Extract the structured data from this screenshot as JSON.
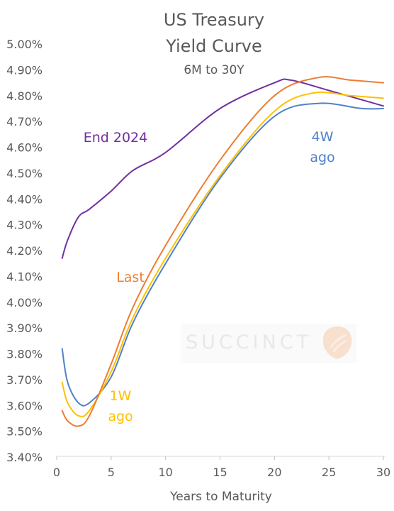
{
  "chart_data": {
    "type": "line",
    "title": "US Treasury",
    "title_line2": "Yield Curve",
    "subtitle": "6M to 30Y",
    "xlabel": "Years to Maturity",
    "ylabel": "",
    "xlim": [
      0,
      30
    ],
    "ylim": [
      3.4,
      5.0
    ],
    "x_ticks": [
      0,
      5,
      10,
      15,
      20,
      25,
      30
    ],
    "y_ticks": [
      3.4,
      3.5,
      3.6,
      3.7,
      3.8,
      3.9,
      4.0,
      4.1,
      4.2,
      4.3,
      4.4,
      4.5,
      4.6,
      4.7,
      4.8,
      4.9,
      5.0
    ],
    "y_tick_labels": [
      "3.40%",
      "3.50%",
      "3.60%",
      "3.70%",
      "3.80%",
      "3.90%",
      "4.00%",
      "4.10%",
      "4.20%",
      "4.30%",
      "4.40%",
      "4.50%",
      "4.60%",
      "4.70%",
      "4.80%",
      "4.90%",
      "5.00%"
    ],
    "grid": false,
    "legend": "inline labels",
    "watermark": "SUCCINCT",
    "series": [
      {
        "name": "End 2024",
        "color": "#7030a0",
        "label_lines": [
          "End 2024"
        ],
        "points": [
          [
            0.5,
            4.17
          ],
          [
            1,
            4.24
          ],
          [
            2,
            4.33
          ],
          [
            3,
            4.36
          ],
          [
            5,
            4.43
          ],
          [
            7,
            4.51
          ],
          [
            10,
            4.58
          ],
          [
            15,
            4.75
          ],
          [
            20,
            4.85
          ],
          [
            21.5,
            4.86
          ],
          [
            25,
            4.82
          ],
          [
            30,
            4.76
          ]
        ]
      },
      {
        "name": "4W ago",
        "color": "#4f81c7",
        "label_lines": [
          "4W",
          "ago"
        ],
        "points": [
          [
            0.5,
            3.82
          ],
          [
            1,
            3.69
          ],
          [
            2,
            3.61
          ],
          [
            3,
            3.61
          ],
          [
            5,
            3.71
          ],
          [
            7,
            3.92
          ],
          [
            10,
            4.15
          ],
          [
            15,
            4.48
          ],
          [
            20,
            4.72
          ],
          [
            24,
            4.77
          ],
          [
            28,
            4.75
          ],
          [
            30,
            4.75
          ]
        ]
      },
      {
        "name": "1W ago",
        "color": "#ffc000",
        "label_lines": [
          "1W",
          "ago"
        ],
        "points": [
          [
            0.5,
            3.69
          ],
          [
            1,
            3.61
          ],
          [
            2,
            3.56
          ],
          [
            3,
            3.58
          ],
          [
            5,
            3.73
          ],
          [
            7,
            3.94
          ],
          [
            10,
            4.17
          ],
          [
            15,
            4.49
          ],
          [
            20,
            4.74
          ],
          [
            23.5,
            4.81
          ],
          [
            27,
            4.8
          ],
          [
            30,
            4.79
          ]
        ]
      },
      {
        "name": "Last",
        "color": "#ed7d31",
        "label_lines": [
          "Last"
        ],
        "points": [
          [
            0.5,
            3.58
          ],
          [
            1,
            3.54
          ],
          [
            2,
            3.52
          ],
          [
            3,
            3.56
          ],
          [
            5,
            3.76
          ],
          [
            7,
            3.98
          ],
          [
            10,
            4.22
          ],
          [
            15,
            4.55
          ],
          [
            20,
            4.8
          ],
          [
            24,
            4.87
          ],
          [
            27,
            4.86
          ],
          [
            30,
            4.85
          ]
        ]
      }
    ]
  }
}
